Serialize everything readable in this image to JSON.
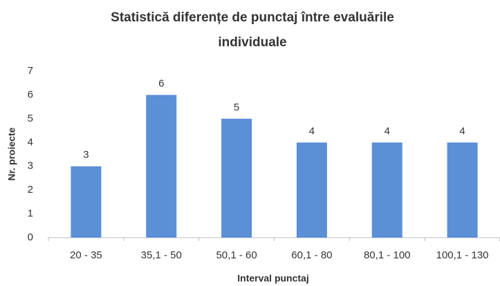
{
  "chart_data": {
    "type": "bar",
    "title": "Statistică diferențe de punctaj între evaluările individuale",
    "x_label": "Interval punctaj",
    "y_label": "Nr. proiecte",
    "categories": [
      "20 - 35",
      "35,1 - 50",
      "50,1 - 60",
      "60,1 - 80",
      "80,1 - 100",
      "100,1 - 130"
    ],
    "values": [
      3,
      6,
      5,
      4,
      4,
      4
    ],
    "color": "#5b8fd6",
    "ylim": [
      0,
      7
    ],
    "yticks": [
      0,
      1,
      2,
      3,
      4,
      5,
      6,
      7
    ],
    "grid": false
  }
}
